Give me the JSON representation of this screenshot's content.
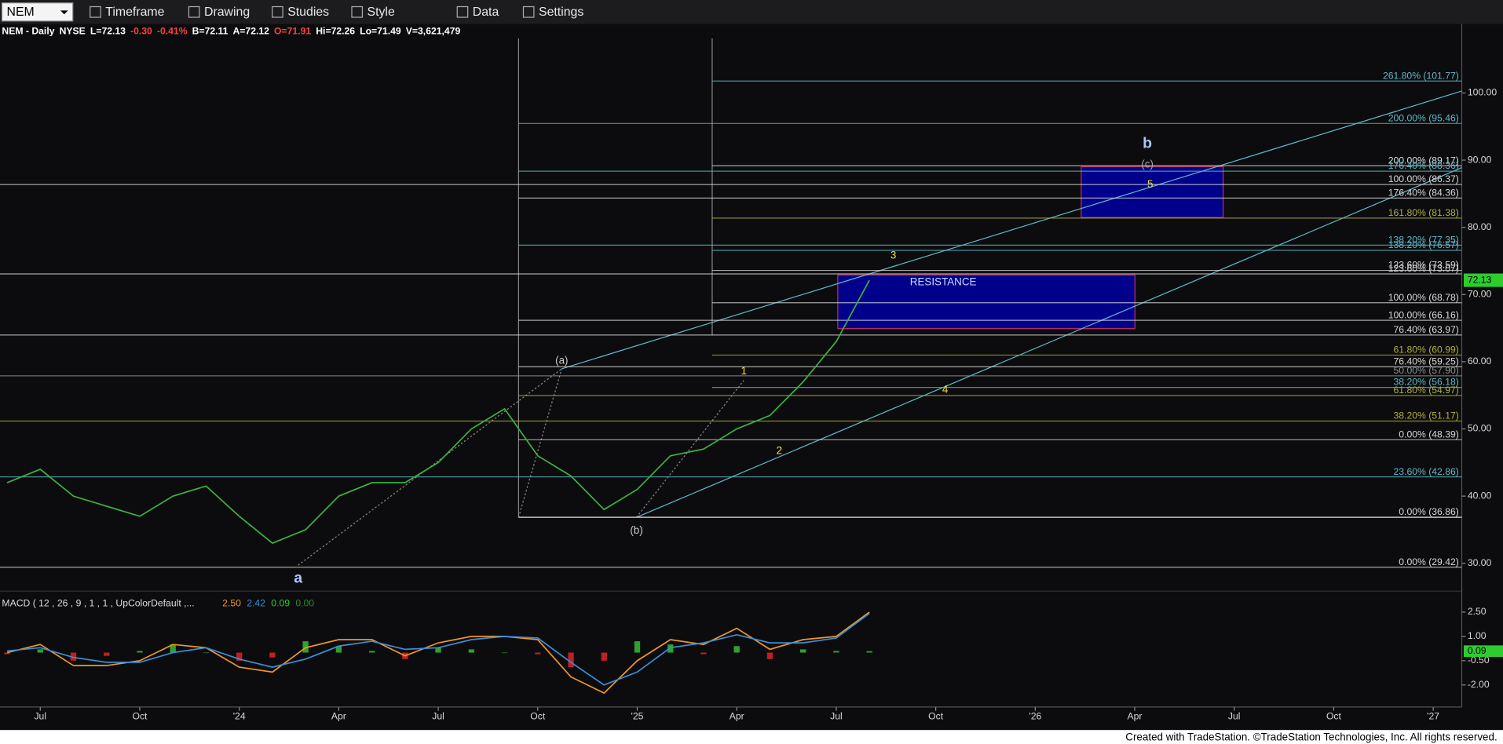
{
  "toolbar": {
    "symbol": "NEM",
    "menus": [
      "Timeframe",
      "Drawing",
      "Studies",
      "Style",
      "Data",
      "Settings"
    ]
  },
  "chart_data": {
    "type": "line",
    "quote": [
      "NEM - Daily",
      "NYSE",
      "L=72.13",
      "-0.30",
      "-0.41%",
      "B=72.11",
      "A=72.12",
      "O=71.91",
      "Hi=72.26",
      "Lo=71.49",
      "V=3,621,479"
    ],
    "last_price": "72.13",
    "categories": [
      null,
      "Jul",
      null,
      null,
      "Oct",
      null,
      null,
      "'24",
      null,
      null,
      "Apr",
      null,
      null,
      "Jul",
      null,
      null,
      "Oct",
      null,
      null,
      "'25",
      null,
      null,
      "Apr",
      null,
      null,
      "Jul",
      null,
      null,
      "Oct",
      null,
      null,
      "'26",
      null,
      null,
      "Apr",
      null,
      null,
      "Jul",
      null,
      null,
      "Oct",
      null,
      null,
      "'27"
    ],
    "series": [
      {
        "color": "#3cb043",
        "values": [
          42,
          44,
          40,
          38.5,
          37,
          40,
          41.5,
          37,
          33,
          35,
          40,
          42,
          42,
          45,
          50,
          53,
          46,
          43,
          38,
          41,
          46,
          47,
          50,
          52,
          57,
          63,
          72.13,
          null,
          null,
          null,
          null,
          null,
          null,
          null,
          null,
          null,
          null,
          null,
          null,
          null,
          null,
          null,
          null,
          null
        ]
      }
    ],
    "ylim": [
      25.9,
      108.1
    ],
    "yticks": [
      {
        "value": 30,
        "label": "30.00"
      },
      {
        "value": 40,
        "label": "40.00"
      },
      {
        "value": 50,
        "label": "50.00"
      },
      {
        "value": 60,
        "label": "60.00"
      },
      {
        "value": 70,
        "label": "70.00"
      },
      {
        "value": 80,
        "label": "80.00"
      },
      {
        "value": 90,
        "label": "90.00"
      },
      {
        "value": 100,
        "label": "100.00"
      }
    ],
    "levels": [
      {
        "value": 101.77,
        "label": "261.80% (101.77)",
        "color": "#5fb8c8"
      },
      {
        "value": 95.46,
        "label": "200.00% (95.46)",
        "color": "#5fb8c8"
      },
      {
        "value": 89.17,
        "label": "200.00% (89.17)",
        "color": "#d8d8d8"
      },
      {
        "value": 88.36,
        "label": "176.40% (88.36)",
        "color": "#5fb8c8"
      },
      {
        "value": 86.37,
        "label": "100.00% (86.37)",
        "color": "#d8d8d8"
      },
      {
        "value": 84.36,
        "label": "176.40% (84.36)",
        "color": "#d8d8d8"
      },
      {
        "value": 81.38,
        "label": "161.80% (81.38)",
        "color": "#b0b040"
      },
      {
        "value": 77.35,
        "label": "138.20% (77.35)",
        "color": "#5fb8c8"
      },
      {
        "value": 76.57,
        "label": "138.20% (76.57)",
        "color": "#5fb8c8"
      },
      {
        "value": 73.59,
        "label": "123.60% (73.59)",
        "color": "#d8d8d8"
      },
      {
        "value": 73.07,
        "label": "123.60% (73.07)",
        "color": "#d8d8d8"
      },
      {
        "value": 68.78,
        "label": "100.00% (68.78)",
        "color": "#d8d8d8"
      },
      {
        "value": 66.16,
        "label": "100.00% (66.16)",
        "color": "#d8d8d8"
      },
      {
        "value": 63.97,
        "label": "76.40% (63.97)",
        "color": "#d8d8d8"
      },
      {
        "value": 60.99,
        "label": "61.80% (60.99)",
        "color": "#b0b040"
      },
      {
        "value": 59.25,
        "label": "76.40% (59.25)",
        "color": "#d8d8d8"
      },
      {
        "value": 57.9,
        "label": "50.00% (57.90)",
        "color": "#909090"
      },
      {
        "value": 56.18,
        "label": "38.20% (56.18)",
        "color": "#5fb8c8"
      },
      {
        "value": 54.97,
        "label": "61.80% (54.97)",
        "color": "#b0b040"
      },
      {
        "value": 51.17,
        "label": "38.20% (51.17)",
        "color": "#b0b040"
      },
      {
        "value": 48.39,
        "label": "0.00% (48.39)",
        "color": "#d8d8d8"
      },
      {
        "value": 42.86,
        "label": "23.60% (42.86)",
        "color": "#5fb8c8"
      },
      {
        "value": 36.86,
        "label": "0.00% (36.86)",
        "color": "#d8d8d8"
      },
      {
        "value": 29.42,
        "label": "0.00% (29.42)",
        "color": "#d8d8d8"
      }
    ],
    "annotations": [
      "a",
      "(a)",
      "(b)",
      "1",
      "2",
      "3",
      "4",
      "5",
      "(c)",
      "b",
      "RESISTANCE"
    ],
    "macd": {
      "title": "MACD ( 12 , 26 , 9 , 1 , 1 , UpColorDefault ,...",
      "legend_values": [
        "2.50",
        "2.42",
        "0.09",
        "0.00"
      ],
      "last_value": "0.09",
      "ylim": [
        -3.36,
        3.5
      ],
      "yticks": [
        {
          "value": 2.5,
          "label": "2.50"
        },
        {
          "value": 1,
          "label": "1.00"
        },
        {
          "value": -0.5,
          "label": "-0.50"
        },
        {
          "value": -2,
          "label": "-2.00"
        }
      ],
      "series": [
        {
          "color": "#f0962a",
          "values": [
            0.0,
            0.5,
            -0.8,
            -0.8,
            -0.5,
            0.5,
            0.3,
            -0.9,
            -1.2,
            0.3,
            0.8,
            0.8,
            -0.2,
            0.6,
            1.0,
            1.0,
            0.8,
            -1.5,
            -2.5,
            -0.5,
            0.8,
            0.5,
            1.5,
            0.2,
            0.8,
            1.0,
            2.5,
            null,
            null,
            null,
            null,
            null,
            null,
            null,
            null,
            null,
            null,
            null,
            null,
            null,
            null,
            null,
            null,
            null
          ]
        },
        {
          "color": "#3a8fd8",
          "values": [
            0.1,
            0.3,
            -0.3,
            -0.6,
            -0.6,
            0.0,
            0.3,
            -0.4,
            -0.9,
            -0.4,
            0.4,
            0.7,
            0.2,
            0.3,
            0.8,
            1.0,
            0.9,
            -0.6,
            -2.0,
            -1.2,
            0.3,
            0.6,
            1.1,
            0.6,
            0.6,
            0.9,
            2.42,
            null,
            null,
            null,
            null,
            null,
            null,
            null,
            null,
            null,
            null,
            null,
            null,
            null,
            null,
            null,
            null,
            null
          ]
        }
      ],
      "histogram": {
        "up_color": "#2ea12e",
        "down_color": "#c02020",
        "values": [
          -0.1,
          0.2,
          -0.5,
          -0.2,
          0.1,
          0.5,
          0.0,
          -0.5,
          -0.3,
          0.7,
          0.4,
          0.1,
          -0.4,
          0.3,
          0.2,
          0.0,
          -0.1,
          -0.9,
          -0.5,
          0.7,
          0.5,
          -0.1,
          0.4,
          -0.4,
          0.2,
          0.1,
          0.09,
          null,
          null,
          null,
          null,
          null,
          null,
          null,
          null,
          null,
          null,
          null,
          null,
          null,
          null,
          null,
          null,
          null
        ]
      }
    }
  },
  "footer": "Created with TradeStation. ©TradeStation Technologies, Inc. All rights reserved."
}
